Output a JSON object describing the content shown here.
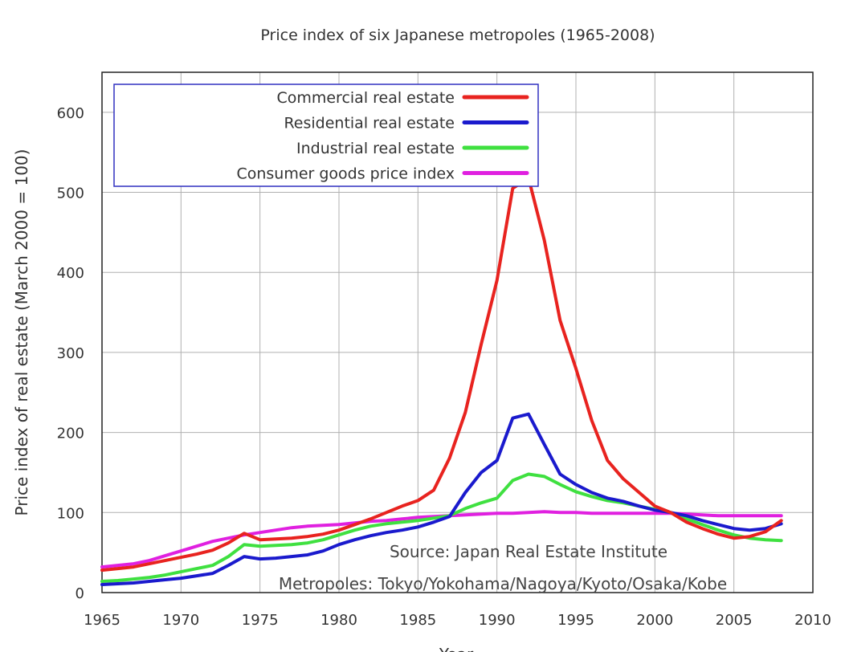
{
  "chart_data": {
    "type": "line",
    "title": "Price index of six Japanese metropoles (1965-2008)",
    "xlabel": "Year",
    "ylabel": "Price index of real estate (March 2000 = 100)",
    "xlim": [
      1965,
      2010
    ],
    "ylim": [
      0,
      650
    ],
    "xticks": [
      "1965",
      "1970",
      "1975",
      "1980",
      "1985",
      "1990",
      "1995",
      "2000",
      "2005",
      "2010"
    ],
    "yticks": [
      "0",
      "100",
      "200",
      "300",
      "400",
      "500",
      "600"
    ],
    "grid": true,
    "legend_position": "top-left",
    "x": [
      1965,
      1966,
      1967,
      1968,
      1969,
      1970,
      1971,
      1972,
      1973,
      1974,
      1975,
      1976,
      1977,
      1978,
      1979,
      1980,
      1981,
      1982,
      1983,
      1984,
      1985,
      1986,
      1987,
      1988,
      1989,
      1990,
      1991,
      1992,
      1993,
      1994,
      1995,
      1996,
      1997,
      1998,
      1999,
      2000,
      2001,
      2002,
      2003,
      2004,
      2005,
      2006,
      2007,
      2008
    ],
    "series": [
      {
        "name": "Commercial real estate",
        "color": "#e8231f",
        "values": [
          28,
          30,
          32,
          36,
          40,
          44,
          48,
          53,
          62,
          74,
          66,
          67,
          68,
          70,
          73,
          78,
          85,
          92,
          100,
          108,
          115,
          128,
          168,
          225,
          310,
          390,
          505,
          518,
          440,
          340,
          280,
          215,
          165,
          142,
          125,
          108,
          100,
          88,
          80,
          73,
          68,
          70,
          76,
          90
        ]
      },
      {
        "name": "Residential real estate",
        "color": "#1a1acd",
        "values": [
          10,
          11,
          12,
          14,
          16,
          18,
          21,
          24,
          34,
          45,
          42,
          43,
          45,
          47,
          52,
          60,
          66,
          71,
          75,
          78,
          82,
          88,
          95,
          125,
          150,
          165,
          218,
          223,
          185,
          148,
          135,
          125,
          118,
          114,
          108,
          103,
          100,
          96,
          90,
          85,
          80,
          78,
          80,
          86
        ]
      },
      {
        "name": "Industrial real estate",
        "color": "#3fe040",
        "values": [
          14,
          15,
          17,
          19,
          22,
          26,
          30,
          34,
          45,
          60,
          58,
          59,
          60,
          62,
          66,
          72,
          78,
          83,
          86,
          88,
          90,
          93,
          96,
          105,
          112,
          118,
          140,
          148,
          145,
          135,
          126,
          120,
          115,
          112,
          108,
          104,
          100,
          92,
          85,
          78,
          72,
          68,
          66,
          65
        ]
      },
      {
        "name": "Consumer goods price index",
        "color": "#e020e0",
        "values": [
          32,
          34,
          36,
          40,
          46,
          52,
          58,
          64,
          68,
          72,
          75,
          78,
          81,
          83,
          84,
          85,
          87,
          89,
          90,
          92,
          94,
          95,
          96,
          97,
          98,
          99,
          99,
          100,
          101,
          100,
          100,
          99,
          99,
          99,
          99,
          99,
          99,
          98,
          97,
          96,
          96,
          96,
          96,
          96
        ]
      }
    ],
    "annotations": [
      "Source: Japan Real Estate Institute",
      "Metropoles: Tokyo/Yokohama/Nagoya/Kyoto/Osaka/Kobe"
    ]
  }
}
